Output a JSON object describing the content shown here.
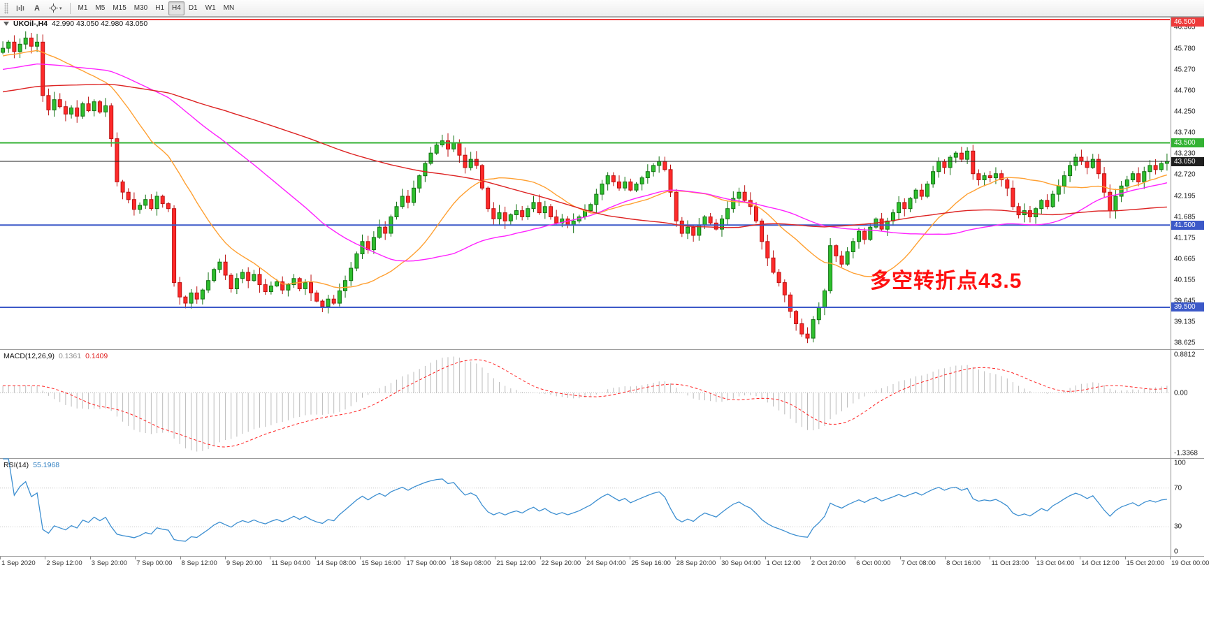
{
  "toolbar": {
    "text_tool_glyph": "A",
    "timeframes": [
      "M1",
      "M5",
      "M15",
      "M30",
      "H1",
      "H4",
      "D1",
      "W1",
      "MN"
    ],
    "active_timeframe": "H4"
  },
  "chart": {
    "title": {
      "symbol_period": "UKOil-,H4",
      "ohlc": "42.990 43.050 42.980 43.050"
    },
    "annotation": {
      "text": "多空转折点43.5",
      "color": "#ff1010"
    },
    "price_scale": [
      "46.305",
      "45.780",
      "45.270",
      "44.760",
      "44.250",
      "43.740",
      "43.230",
      "42.720",
      "42.195",
      "41.685",
      "41.175",
      "40.665",
      "40.155",
      "39.645",
      "39.135",
      "38.625"
    ],
    "price_range": {
      "top": 46.55,
      "bottom": 38.48
    },
    "levels": [
      {
        "price": 46.5,
        "label": "46.500",
        "color": "#ee3b3b",
        "type": "hline"
      },
      {
        "price": 43.5,
        "label": "43.500",
        "color": "#33b233",
        "type": "hline"
      },
      {
        "price": 43.05,
        "label": "43.050",
        "color": "#1f1f1f",
        "type": "bid"
      },
      {
        "price": 41.5,
        "label": "41.500",
        "color": "#3c59c8",
        "type": "hline"
      },
      {
        "price": 39.5,
        "label": "39.500",
        "color": "#3c59c8",
        "type": "hline"
      }
    ]
  },
  "chart_data": {
    "type": "candlestick",
    "symbol": "UKOil-",
    "timeframe": "H4",
    "x_labels": [
      "1 Sep 2020",
      "2 Sep 12:00",
      "3 Sep 20:00",
      "7 Sep 00:00",
      "8 Sep 12:00",
      "9 Sep 20:00",
      "11 Sep 04:00",
      "14 Sep 08:00",
      "15 Sep 16:00",
      "17 Sep 00:00",
      "18 Sep 08:00",
      "21 Sep 12:00",
      "22 Sep 20:00",
      "24 Sep 04:00",
      "25 Sep 16:00",
      "28 Sep 20:00",
      "30 Sep 04:00",
      "1 Oct 12:00",
      "2 Oct 20:00",
      "6 Oct 00:00",
      "7 Oct 08:00",
      "8 Oct 16:00",
      "11 Oct 23:00",
      "13 Oct 04:00",
      "14 Oct 12:00",
      "15 Oct 20:00",
      "19 Oct 00:00"
    ],
    "candles": {
      "first_open": 45.7,
      "bull_color": "#2ebf2e",
      "bull_stroke": "#117011",
      "bear_color": "#ff2a2a",
      "bear_stroke": "#bb1111",
      "closes": [
        45.8,
        45.95,
        45.72,
        45.9,
        46.05,
        45.85,
        45.95,
        44.65,
        44.3,
        44.55,
        44.38,
        44.2,
        44.35,
        44.15,
        44.45,
        44.28,
        44.5,
        44.25,
        44.4,
        43.6,
        42.55,
        42.3,
        42.12,
        41.88,
        41.98,
        42.12,
        41.9,
        42.2,
        42.02,
        41.9,
        40.1,
        39.75,
        39.6,
        39.85,
        39.7,
        39.92,
        40.15,
        40.42,
        40.6,
        40.28,
        39.95,
        40.2,
        40.35,
        40.15,
        40.3,
        40.05,
        39.88,
        40.02,
        40.12,
        39.92,
        40.05,
        40.2,
        39.95,
        40.1,
        39.85,
        39.65,
        39.52,
        39.7,
        39.6,
        39.9,
        40.15,
        40.45,
        40.8,
        41.1,
        40.9,
        41.2,
        41.45,
        41.3,
        41.7,
        41.95,
        42.2,
        42.05,
        42.4,
        42.7,
        43.0,
        43.25,
        43.45,
        43.55,
        43.35,
        43.5,
        43.2,
        42.9,
        43.1,
        42.95,
        42.4,
        41.9,
        41.65,
        41.8,
        41.6,
        41.75,
        41.85,
        41.7,
        41.9,
        42.05,
        41.8,
        41.95,
        41.7,
        41.55,
        41.65,
        41.5,
        41.6,
        41.7,
        41.85,
        42.0,
        42.25,
        42.5,
        42.7,
        42.55,
        42.4,
        42.55,
        42.35,
        42.5,
        42.65,
        42.8,
        42.95,
        43.05,
        42.85,
        42.3,
        41.6,
        41.3,
        41.45,
        41.25,
        41.5,
        41.7,
        41.55,
        41.4,
        41.65,
        41.9,
        42.15,
        42.3,
        42.1,
        41.95,
        41.6,
        41.1,
        40.7,
        40.35,
        40.1,
        39.8,
        39.4,
        39.1,
        38.85,
        38.75,
        39.2,
        39.5,
        39.9,
        41.0,
        40.75,
        40.55,
        40.85,
        41.1,
        41.35,
        41.15,
        41.45,
        41.65,
        41.4,
        41.6,
        41.8,
        42.05,
        41.9,
        42.15,
        42.35,
        42.2,
        42.5,
        42.8,
        43.05,
        42.9,
        43.15,
        43.25,
        43.1,
        43.3,
        42.75,
        42.6,
        42.7,
        42.65,
        42.75,
        42.6,
        42.4,
        41.95,
        41.75,
        41.85,
        41.7,
        41.9,
        42.1,
        41.95,
        42.25,
        42.45,
        42.7,
        42.95,
        43.15,
        43.05,
        42.9,
        43.1,
        42.75,
        42.3,
        41.85,
        42.2,
        42.45,
        42.6,
        42.75,
        42.55,
        42.8,
        42.95,
        42.85,
        43.0,
        43.05
      ]
    },
    "overlays": [
      {
        "name": "sma-20",
        "period": 20,
        "color": "#ffa032"
      },
      {
        "name": "sma-50",
        "period": 50,
        "color": "#ff22ff"
      },
      {
        "name": "sma-100",
        "period": 100,
        "color": "#dd2222"
      }
    ],
    "indicators": [
      {
        "name": "macd",
        "label": "MACD(12,26,9)",
        "value_main": "0.1361",
        "value_signal": "0.1409",
        "fast": 12,
        "slow": 26,
        "signal": 9,
        "scale_labels": [
          "0.8812",
          "0.00",
          "-1.3368"
        ],
        "colors": {
          "histogram": "#bbbbbb",
          "signal": "#ff2222"
        }
      },
      {
        "name": "rsi",
        "label": "RSI(14)",
        "value": "55.1968",
        "period": 14,
        "scale_labels": [
          "100",
          "70",
          "30",
          "0"
        ],
        "levels": [
          70,
          30
        ],
        "color": "#3d8fd1"
      }
    ]
  }
}
